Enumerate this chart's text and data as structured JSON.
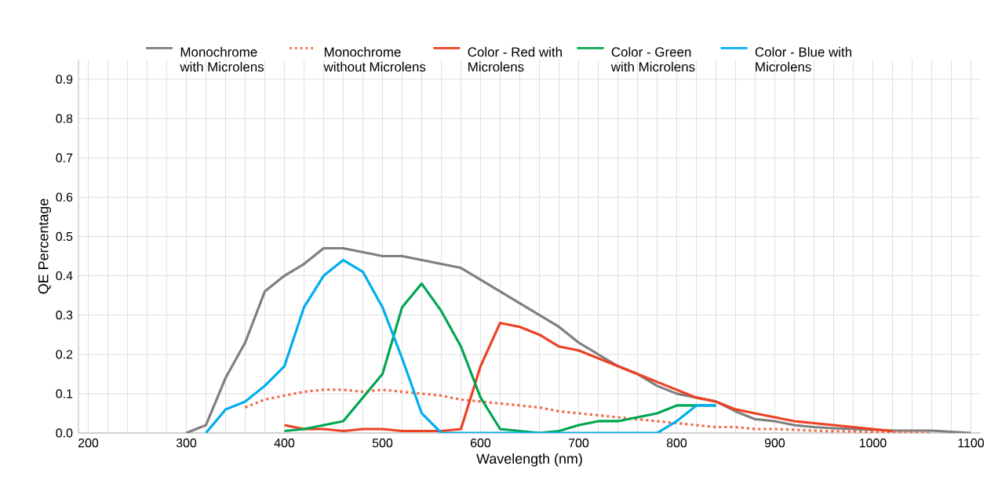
{
  "chart_data": {
    "type": "line",
    "xlabel": "Wavelength (nm)",
    "ylabel": "QE Percentage",
    "xlim": [
      190,
      1110
    ],
    "ylim": [
      0,
      0.95
    ],
    "xticks": [
      200,
      300,
      400,
      500,
      600,
      700,
      800,
      900,
      1000,
      1100
    ],
    "yticks": [
      {
        "value": 0,
        "label": "0.0"
      },
      0.1,
      0.2,
      0.3,
      0.4,
      0.5,
      0.6,
      0.7,
      0.8,
      0.9
    ],
    "grid": true,
    "legend": "top",
    "line_style": "solid",
    "marker": "none",
    "series": [
      {
        "name": "Monochrome with Microlens",
        "color": "#7f7f7f",
        "x": [
          300,
          320,
          340,
          360,
          380,
          400,
          420,
          440,
          460,
          480,
          500,
          520,
          540,
          560,
          580,
          600,
          620,
          640,
          660,
          680,
          700,
          720,
          740,
          760,
          780,
          800,
          820,
          840,
          860,
          880,
          900,
          920,
          940,
          960,
          980,
          1000,
          1020,
          1040,
          1060,
          1080,
          1100
        ],
        "values": [
          0,
          0.02,
          0.14,
          0.23,
          0.36,
          0.4,
          0.43,
          0.47,
          0.47,
          0.46,
          0.45,
          0.45,
          0.44,
          0.43,
          0.42,
          0.39,
          0.36,
          0.33,
          0.3,
          0.27,
          0.23,
          0.2,
          0.17,
          0.15,
          0.12,
          0.1,
          0.09,
          0.08,
          0.055,
          0.035,
          0.03,
          0.02,
          0.015,
          0.012,
          0.01,
          0.008,
          0.006,
          0.006,
          0.006,
          0.003,
          0
        ]
      },
      {
        "name": "Monochrome without Microlens",
        "color": "#f26a45",
        "line_style": "dotted",
        "x": [
          360,
          380,
          400,
          420,
          440,
          460,
          480,
          500,
          520,
          540,
          560,
          580,
          600,
          620,
          640,
          660,
          680,
          700,
          720,
          740,
          760,
          780,
          800,
          820,
          840,
          860,
          880,
          900,
          950,
          1000,
          1060
        ],
        "values": [
          0.065,
          0.085,
          0.095,
          0.105,
          0.11,
          0.11,
          0.105,
          0.11,
          0.105,
          0.1,
          0.095,
          0.085,
          0.08,
          0.075,
          0.07,
          0.065,
          0.055,
          0.05,
          0.045,
          0.04,
          0.035,
          0.03,
          0.025,
          0.02,
          0.015,
          0.015,
          0.01,
          0.01,
          0.005,
          0.003,
          0
        ]
      },
      {
        "name": "Color - Red with Microlens",
        "color": "#ee4023",
        "x": [
          400,
          420,
          440,
          460,
          480,
          500,
          520,
          540,
          560,
          580,
          600,
          620,
          640,
          660,
          680,
          700,
          720,
          740,
          760,
          780,
          800,
          820,
          840,
          860,
          880,
          900,
          920,
          940,
          960,
          980,
          1000,
          1020
        ],
        "values": [
          0.02,
          0.01,
          0.01,
          0.005,
          0.01,
          0.01,
          0.005,
          0.005,
          0.005,
          0.01,
          0.17,
          0.28,
          0.27,
          0.25,
          0.22,
          0.21,
          0.19,
          0.17,
          0.15,
          0.13,
          0.11,
          0.09,
          0.08,
          0.06,
          0.05,
          0.04,
          0.03,
          0.025,
          0.02,
          0.015,
          0.01,
          0.005
        ]
      },
      {
        "name": "Color - Green with Microlens",
        "color": "#00a651",
        "x": [
          400,
          420,
          440,
          460,
          480,
          500,
          520,
          540,
          560,
          580,
          600,
          620,
          640,
          660,
          680,
          700,
          720,
          740,
          760,
          780,
          800,
          820,
          840
        ],
        "values": [
          0.005,
          0.01,
          0.02,
          0.03,
          0.09,
          0.15,
          0.32,
          0.38,
          0.31,
          0.22,
          0.09,
          0.01,
          0.005,
          0,
          0.005,
          0.02,
          0.03,
          0.03,
          0.04,
          0.05,
          0.07,
          0.07,
          0.07
        ]
      },
      {
        "name": "Color - Blue with Microlens",
        "color": "#00aeef",
        "x": [
          320,
          340,
          360,
          380,
          400,
          420,
          440,
          460,
          480,
          500,
          520,
          540,
          560,
          580,
          600,
          620,
          640,
          660,
          680,
          700,
          720,
          740,
          760,
          780,
          800,
          820,
          840
        ],
        "values": [
          0,
          0.06,
          0.08,
          0.12,
          0.17,
          0.32,
          0.4,
          0.44,
          0.41,
          0.32,
          0.19,
          0.05,
          0,
          0,
          0,
          0,
          0,
          0,
          0,
          0,
          0,
          0,
          0,
          0,
          0.03,
          0.07,
          0.07
        ]
      }
    ]
  }
}
